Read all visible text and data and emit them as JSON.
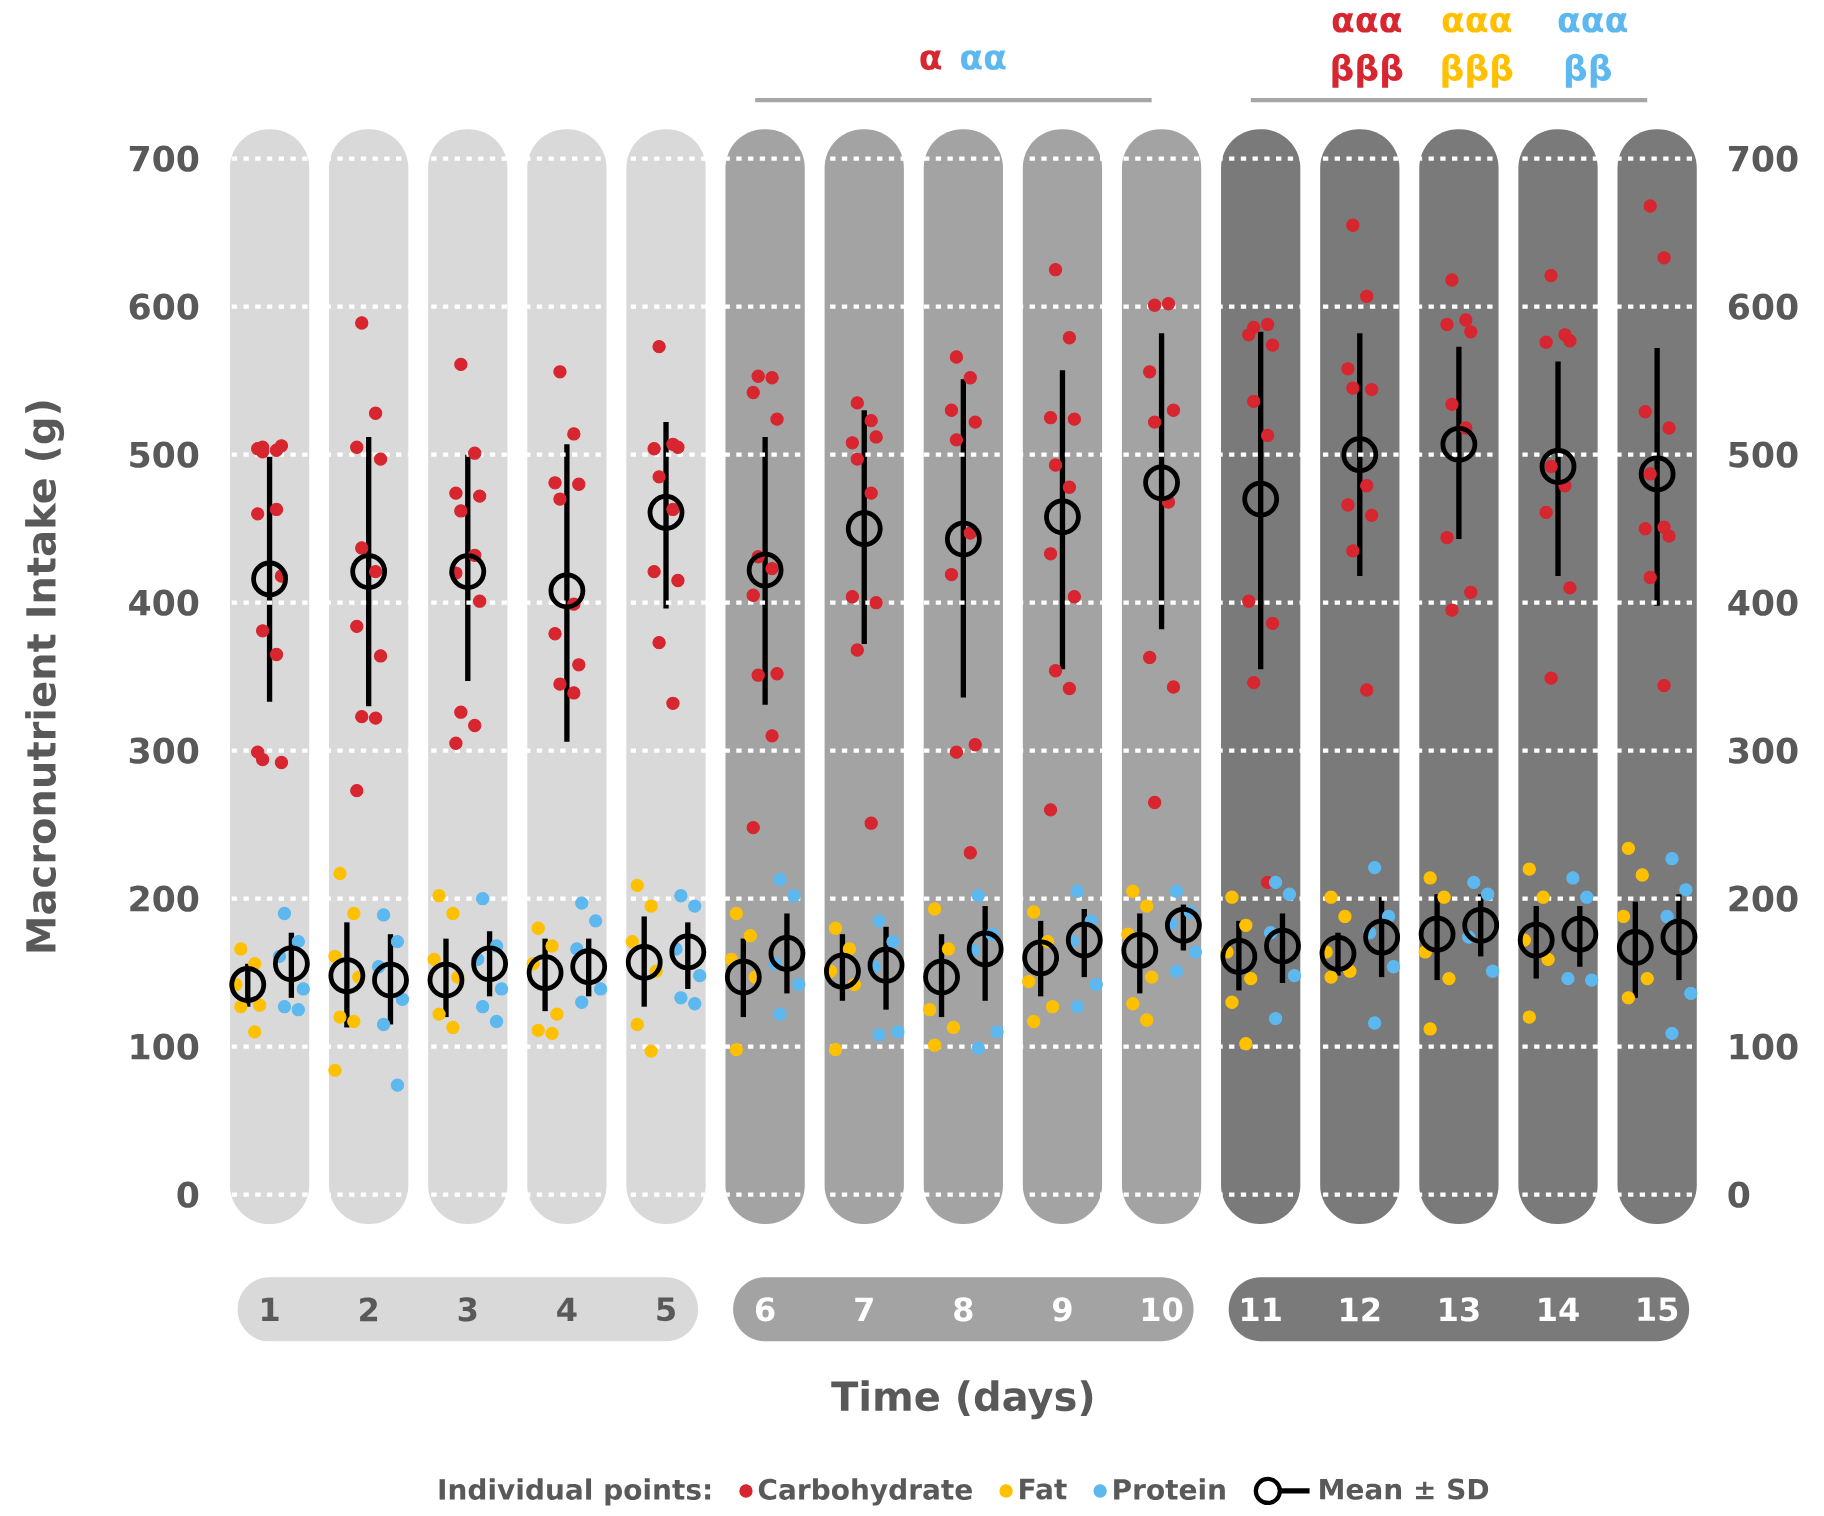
{
  "chart_data": {
    "type": "scatter",
    "xlabel": "Time (days)",
    "ylabel": "Macronutrient Intake (g)",
    "legend_title": "Individual points:",
    "categories": [
      "1",
      "2",
      "3",
      "4",
      "5",
      "6",
      "7",
      "8",
      "9",
      "10",
      "11",
      "12",
      "13",
      "14",
      "15"
    ],
    "ylim": [
      0,
      700
    ],
    "yticks": [
      0,
      100,
      200,
      300,
      400,
      500,
      600,
      700
    ],
    "y2lim": [
      0,
      700
    ],
    "y2ticks": [
      0,
      100,
      200,
      300,
      400,
      500,
      600,
      700
    ],
    "grid": "y",
    "legend": "bottom",
    "marker": "circle",
    "bands": [
      {
        "axis": "x",
        "from": "1",
        "to": "1",
        "color": "#d9d9d9"
      },
      {
        "axis": "x",
        "from": "2",
        "to": "2",
        "color": "#d9d9d9"
      },
      {
        "axis": "x",
        "from": "3",
        "to": "3",
        "color": "#d9d9d9"
      },
      {
        "axis": "x",
        "from": "4",
        "to": "4",
        "color": "#d9d9d9"
      },
      {
        "axis": "x",
        "from": "5",
        "to": "5",
        "color": "#d9d9d9"
      },
      {
        "axis": "x",
        "from": "6",
        "to": "6",
        "color": "#a3a3a3"
      },
      {
        "axis": "x",
        "from": "7",
        "to": "7",
        "color": "#a3a3a3"
      },
      {
        "axis": "x",
        "from": "8",
        "to": "8",
        "color": "#a3a3a3"
      },
      {
        "axis": "x",
        "from": "9",
        "to": "9",
        "color": "#a3a3a3"
      },
      {
        "axis": "x",
        "from": "10",
        "to": "10",
        "color": "#a3a3a3"
      },
      {
        "axis": "x",
        "from": "11",
        "to": "11",
        "color": "#7a7a7a"
      },
      {
        "axis": "x",
        "from": "12",
        "to": "12",
        "color": "#7a7a7a"
      },
      {
        "axis": "x",
        "from": "13",
        "to": "13",
        "color": "#7a7a7a"
      },
      {
        "axis": "x",
        "from": "14",
        "to": "14",
        "color": "#7a7a7a"
      },
      {
        "axis": "x",
        "from": "15",
        "to": "15",
        "color": "#7a7a7a"
      }
    ],
    "annotations": [
      "α",
      "αα",
      "ααα",
      "ααα",
      "ααα",
      "βββ",
      "βββ",
      "ββ"
    ],
    "series": [
      {
        "name": "Carbohydrate",
        "color": "#d7262f",
        "x": [
          "1",
          "1",
          "1",
          "1",
          "1",
          "1",
          "1",
          "1",
          "1",
          "1",
          "1",
          "1",
          "1",
          "2",
          "2",
          "2",
          "2",
          "2",
          "2",
          "2",
          "2",
          "2",
          "2",
          "2",
          "3",
          "3",
          "3",
          "3",
          "3",
          "3",
          "3",
          "3",
          "3",
          "3",
          "3",
          "4",
          "4",
          "4",
          "4",
          "4",
          "4",
          "4",
          "4",
          "4",
          "4",
          "5",
          "5",
          "5",
          "5",
          "5",
          "5",
          "5",
          "5",
          "5",
          "5",
          "6",
          "6",
          "6",
          "6",
          "6",
          "6",
          "6",
          "6",
          "6",
          "6",
          "6",
          "7",
          "7",
          "7",
          "7",
          "7",
          "7",
          "7",
          "7",
          "7",
          "7",
          "8",
          "8",
          "8",
          "8",
          "8",
          "8",
          "8",
          "8",
          "8",
          "8",
          "9",
          "9",
          "9",
          "9",
          "9",
          "9",
          "9",
          "9",
          "9",
          "9",
          "9",
          "10",
          "10",
          "10",
          "10",
          "10",
          "10",
          "10",
          "10",
          "10",
          "11",
          "11",
          "11",
          "11",
          "11",
          "11",
          "11",
          "11",
          "11",
          "11",
          "12",
          "12",
          "12",
          "12",
          "12",
          "12",
          "12",
          "12",
          "12",
          "12",
          "13",
          "13",
          "13",
          "13",
          "13",
          "13",
          "13",
          "13",
          "13",
          "14",
          "14",
          "14",
          "14",
          "14",
          "14",
          "14",
          "14",
          "14",
          "15",
          "15",
          "15",
          "15",
          "15",
          "15",
          "15",
          "15",
          "15",
          "15"
        ],
        "values": [
          505,
          503,
          504,
          506,
          502,
          463,
          460,
          418,
          381,
          365,
          299,
          292,
          294,
          589,
          528,
          505,
          497,
          437,
          421,
          384,
          364,
          323,
          322,
          273,
          561,
          501,
          474,
          472,
          462,
          432,
          420,
          401,
          326,
          317,
          305,
          556,
          514,
          481,
          480,
          470,
          399,
          379,
          358,
          345,
          339,
          573,
          507,
          504,
          505,
          485,
          463,
          421,
          415,
          373,
          332,
          553,
          552,
          542,
          524,
          431,
          423,
          405,
          352,
          351,
          310,
          248,
          535,
          523,
          508,
          512,
          497,
          474,
          404,
          400,
          368,
          251,
          566,
          552,
          530,
          522,
          510,
          447,
          419,
          304,
          299,
          231,
          625,
          579,
          525,
          524,
          493,
          478,
          433,
          404,
          354,
          342,
          260,
          601,
          602,
          556,
          530,
          522,
          468,
          363,
          343,
          265,
          586,
          588,
          581,
          574,
          536,
          513,
          401,
          386,
          346,
          211,
          655,
          607,
          558,
          544,
          545,
          479,
          466,
          459,
          435,
          341,
          618,
          591,
          588,
          583,
          534,
          518,
          444,
          407,
          395,
          621,
          581,
          576,
          577,
          492,
          479,
          461,
          410,
          349,
          668,
          633,
          529,
          518,
          487,
          451,
          450,
          445,
          417,
          344
        ]
      },
      {
        "name": "Fat",
        "color": "#ffc000",
        "x": [
          "1",
          "1",
          "1",
          "1",
          "1",
          "1",
          "2",
          "2",
          "2",
          "2",
          "2",
          "2",
          "2",
          "3",
          "3",
          "3",
          "3",
          "3",
          "3",
          "4",
          "4",
          "4",
          "4",
          "4",
          "4",
          "5",
          "5",
          "5",
          "5",
          "5",
          "5",
          "6",
          "6",
          "6",
          "6",
          "6",
          "7",
          "7",
          "7",
          "7",
          "7",
          "8",
          "8",
          "8",
          "8",
          "8",
          "9",
          "9",
          "9",
          "9",
          "9",
          "10",
          "10",
          "10",
          "10",
          "10",
          "10",
          "11",
          "11",
          "11",
          "11",
          "11",
          "11",
          "12",
          "12",
          "12",
          "12",
          "12",
          "13",
          "13",
          "13",
          "13",
          "13",
          "14",
          "14",
          "14",
          "14",
          "14",
          "15",
          "15",
          "15",
          "15",
          "15"
        ],
        "values": [
          166,
          156,
          142,
          128,
          127,
          110,
          217,
          190,
          161,
          147,
          120,
          117,
          84,
          202,
          190,
          159,
          147,
          122,
          113,
          180,
          168,
          156,
          122,
          111,
          109,
          209,
          195,
          171,
          151,
          115,
          97,
          190,
          175,
          159,
          147,
          98,
          180,
          166,
          151,
          142,
          98,
          193,
          166,
          125,
          113,
          101,
          191,
          171,
          144,
          127,
          117,
          205,
          195,
          176,
          147,
          129,
          118,
          201,
          182,
          164,
          146,
          130,
          102,
          201,
          188,
          164,
          151,
          147,
          214,
          201,
          164,
          146,
          112,
          220,
          201,
          172,
          159,
          120,
          234,
          216,
          188,
          146,
          133
        ]
      },
      {
        "name": "Protein",
        "color": "#5db8ef",
        "x": [
          "1",
          "1",
          "1",
          "1",
          "1",
          "1",
          "2",
          "2",
          "2",
          "2",
          "2",
          "2",
          "3",
          "3",
          "3",
          "3",
          "3",
          "3",
          "4",
          "4",
          "4",
          "4",
          "4",
          "5",
          "5",
          "5",
          "5",
          "5",
          "5",
          "6",
          "6",
          "6",
          "6",
          "6",
          "7",
          "7",
          "7",
          "7",
          "7",
          "8",
          "8",
          "8",
          "8",
          "8",
          "9",
          "9",
          "9",
          "9",
          "9",
          "10",
          "10",
          "10",
          "10",
          "10",
          "11",
          "11",
          "11",
          "11",
          "11",
          "12",
          "12",
          "12",
          "12",
          "12",
          "13",
          "13",
          "13",
          "13",
          "14",
          "14",
          "14",
          "14",
          "15",
          "15",
          "15",
          "15",
          "15"
        ],
        "values": [
          190,
          171,
          161,
          139,
          127,
          125,
          189,
          171,
          154,
          132,
          115,
          74,
          200,
          168,
          159,
          139,
          127,
          117,
          197,
          185,
          166,
          139,
          130,
          202,
          195,
          166,
          148,
          133,
          129,
          213,
          202,
          156,
          142,
          122,
          185,
          171,
          154,
          110,
          108,
          202,
          176,
          165,
          110,
          99,
          205,
          185,
          171,
          142,
          127,
          205,
          191,
          183,
          164,
          151,
          211,
          203,
          177,
          148,
          119,
          221,
          188,
          177,
          154,
          116,
          211,
          203,
          174,
          151,
          214,
          201,
          146,
          145,
          227,
          206,
          188,
          136,
          109
        ]
      },
      {
        "name": "Mean ± SD",
        "color": "#000000",
        "values": [
          416,
          421,
          421,
          408,
          461,
          422,
          450,
          443,
          458,
          481,
          470,
          500,
          507,
          492,
          487
        ],
        "errors": [
          [
            333,
            499
          ],
          [
            330,
            512
          ],
          [
            347,
            500
          ],
          [
            306,
            507
          ],
          [
            396,
            522
          ],
          [
            331,
            512
          ],
          [
            372,
            530
          ],
          [
            336,
            551
          ],
          [
            355,
            557
          ],
          [
            382,
            582
          ],
          [
            355,
            583
          ],
          [
            418,
            582
          ],
          [
            443,
            573
          ],
          [
            418,
            563
          ],
          [
            398,
            572
          ]
        ]
      },
      {
        "color": "#000000",
        "values": [
          142,
          148,
          145,
          150,
          157,
          147,
          151,
          147,
          160,
          165,
          161,
          163,
          176,
          172,
          167
        ],
        "errors": [
          [
            127,
            156
          ],
          [
            113,
            184
          ],
          [
            120,
            173
          ],
          [
            124,
            173
          ],
          [
            127,
            188
          ],
          [
            120,
            173
          ],
          [
            131,
            176
          ],
          [
            120,
            176
          ],
          [
            134,
            185
          ],
          [
            136,
            190
          ],
          [
            138,
            185
          ],
          [
            148,
            177
          ],
          [
            145,
            203
          ],
          [
            146,
            195
          ],
          [
            133,
            198
          ]
        ]
      },
      {
        "color": "#000000",
        "values": [
          156,
          145,
          156,
          154,
          164,
          163,
          155,
          166,
          172,
          182,
          168,
          174,
          182,
          176,
          174
        ],
        "errors": [
          [
            133,
            177
          ],
          [
            115,
            176
          ],
          [
            134,
            178
          ],
          [
            134,
            173
          ],
          [
            139,
            184
          ],
          [
            136,
            190
          ],
          [
            125,
            181
          ],
          [
            131,
            195
          ],
          [
            147,
            193
          ],
          [
            165,
            196
          ],
          [
            143,
            190
          ],
          [
            147,
            201
          ],
          [
            161,
            203
          ],
          [
            154,
            195
          ],
          [
            145,
            203
          ]
        ]
      }
    ]
  }
}
